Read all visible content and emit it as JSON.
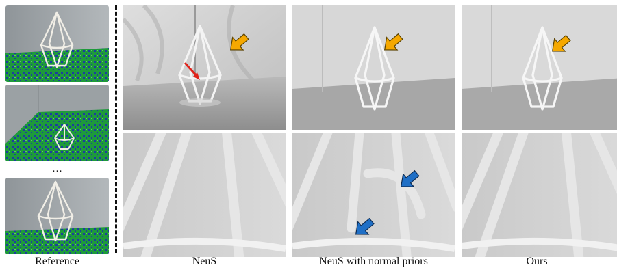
{
  "captions": {
    "reference": "Reference",
    "neus": "NeuS",
    "neus_normal": "NeuS with normal priors",
    "ours": "Ours"
  },
  "ellipsis": "…",
  "colors": {
    "orange_arrow": "#F5A800",
    "red_arrow": "#E0231B",
    "blue_arrow": "#1F6FC6",
    "mat_green": "#1FA03A",
    "mat_blue": "#1F3FA5"
  }
}
